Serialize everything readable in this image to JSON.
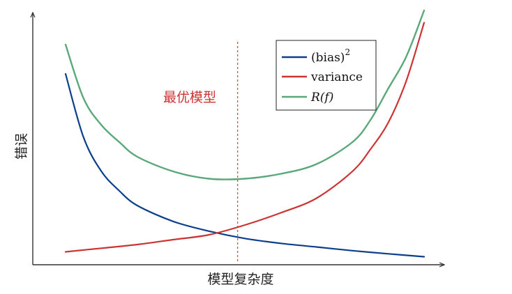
{
  "chart_data": {
    "type": "line",
    "title": "",
    "xlabel": "模型复杂度",
    "ylabel": "错误",
    "grid": false,
    "legend_position": "top-right",
    "x_range": [
      0,
      1
    ],
    "y_range": [
      0,
      1
    ],
    "series": [
      {
        "name": "(bias)",
        "name_superscript": "2",
        "color": "#0b3f8c",
        "x": [
          0.0,
          0.05,
          0.1,
          0.15,
          0.2,
          0.3,
          0.4,
          0.5,
          0.6,
          0.7,
          0.8,
          0.9,
          1.0
        ],
        "y": [
          0.76,
          0.5,
          0.36,
          0.28,
          0.22,
          0.155,
          0.115,
          0.085,
          0.065,
          0.05,
          0.035,
          0.022,
          0.01
        ]
      },
      {
        "name": "variance",
        "color": "#cc3333",
        "x": [
          0.0,
          0.1,
          0.2,
          0.3,
          0.4,
          0.5,
          0.6,
          0.7,
          0.8,
          0.85,
          0.9,
          0.95,
          1.0
        ],
        "y": [
          0.03,
          0.045,
          0.06,
          0.08,
          0.1,
          0.14,
          0.19,
          0.25,
          0.36,
          0.45,
          0.56,
          0.73,
          0.97
        ]
      },
      {
        "name": "R(f)",
        "color": "#5aa87a",
        "x": [
          0.0,
          0.05,
          0.1,
          0.15,
          0.2,
          0.3,
          0.4,
          0.5,
          0.6,
          0.7,
          0.8,
          0.85,
          0.9,
          0.95,
          1.0
        ],
        "y": [
          0.88,
          0.66,
          0.55,
          0.48,
          0.42,
          0.36,
          0.33,
          0.33,
          0.35,
          0.39,
          0.48,
          0.57,
          0.7,
          0.83,
          1.02
        ]
      }
    ],
    "annotations": [
      {
        "text": "最优模型",
        "x": 0.48,
        "color": "#cc3333",
        "style": "dashed-vertical-line"
      }
    ]
  }
}
